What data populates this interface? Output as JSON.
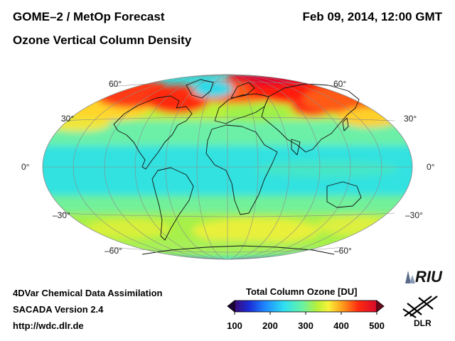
{
  "header": {
    "title": "GOME–2 / MetOp Forecast",
    "subtitle": "Ozone Vertical Column Density",
    "datetime": "Feb 09, 2014, 12:00 GMT"
  },
  "map": {
    "projection": "Hammer-Aitoff (global)",
    "lat_labels": {
      "left": [
        "60°",
        "30°",
        "0°",
        "–30°",
        "–60°"
      ],
      "right": [
        "60°",
        "30°",
        "0°",
        "–30°",
        "–60°"
      ]
    }
  },
  "footer": {
    "line1": "4DVar Chemical Data Assimilation",
    "line2": "SACADA Version 2.4",
    "url": "http://wdc.dlr.de"
  },
  "colorbar": {
    "title": "Total Column Ozone [DU]",
    "ticks": [
      "100",
      "200",
      "300",
      "400",
      "500"
    ],
    "range": [
      100,
      500
    ],
    "colors": [
      "#3a0a78",
      "#1a2bd6",
      "#1f8cff",
      "#2fe0f0",
      "#6af2a0",
      "#b8f03a",
      "#f7f23a",
      "#ff9a1a",
      "#ff2a10",
      "#d60a2a"
    ]
  },
  "logos": {
    "riu": "RIU",
    "dlr": "DLR"
  },
  "colors": {
    "background": "#ffffff",
    "ozone_low": "#2fe0e0",
    "ozone_mid": "#c8f040",
    "ozone_high": "#ff2a10",
    "ozone_max": "#e6002a"
  }
}
